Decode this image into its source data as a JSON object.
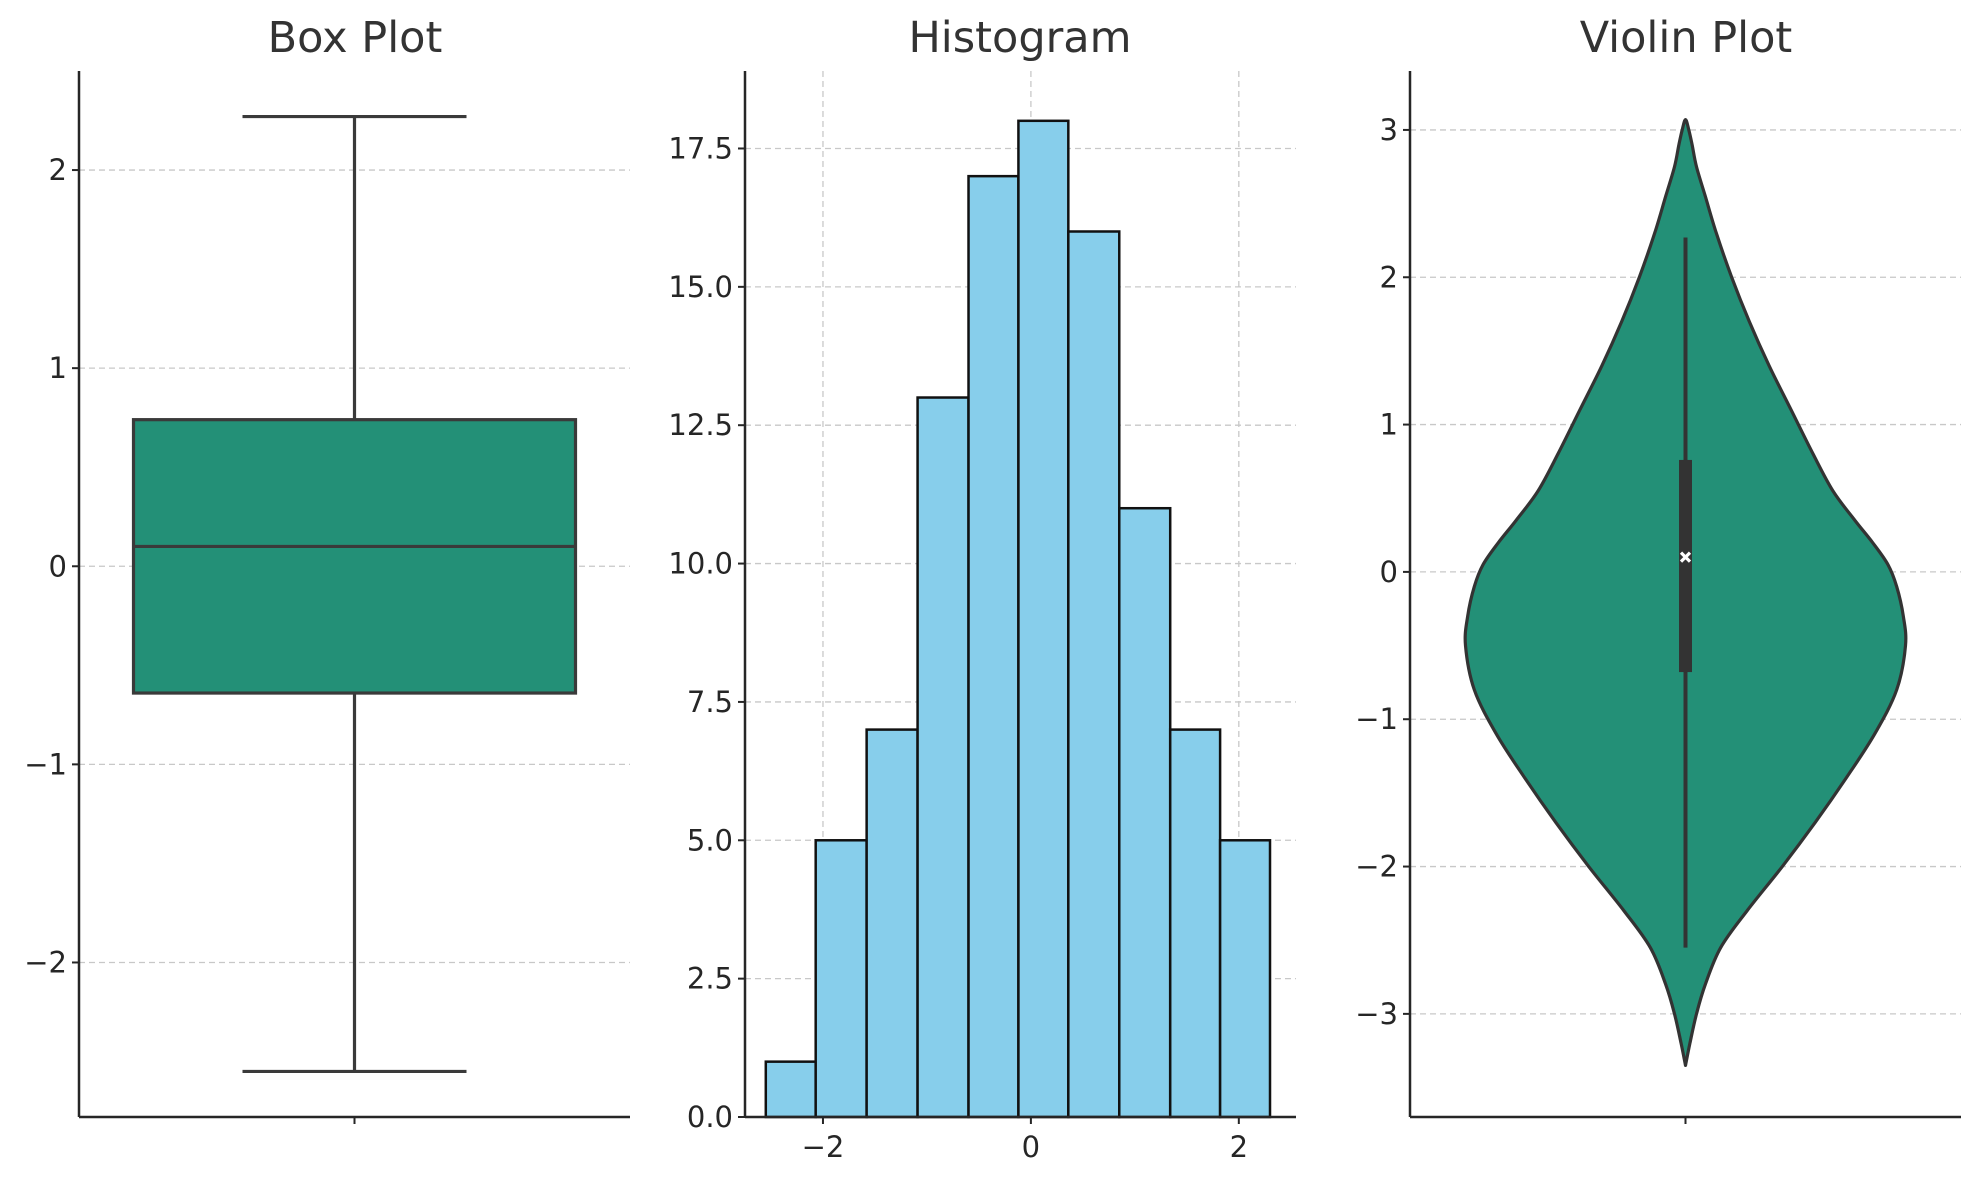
{
  "chart_data": [
    {
      "type": "box",
      "title": "Box Plot",
      "ylim": [
        -2.78,
        2.5
      ],
      "yticks": [
        -2,
        -1,
        0,
        1,
        2
      ],
      "yticklabels": [
        "−2",
        "−1",
        "0",
        "1",
        "2"
      ],
      "grid": "y",
      "stats": {
        "whisker_low": -2.55,
        "q1": -0.64,
        "median": 0.1,
        "q3": 0.74,
        "whisker_high": 2.27
      },
      "colors": {
        "fill": "#239077",
        "edge": "#3a3a3a"
      }
    },
    {
      "type": "bar",
      "title": "Histogram",
      "xlim": [
        -2.75,
        2.55
      ],
      "ylim": [
        0,
        18.9
      ],
      "xticks": [
        -2,
        0,
        2
      ],
      "xticklabels": [
        "−2",
        "0",
        "2"
      ],
      "yticks": [
        0,
        2.5,
        5,
        7.5,
        10,
        12.5,
        15,
        17.5
      ],
      "yticklabels": [
        "0.0",
        "2.5",
        "5.0",
        "7.5",
        "10.0",
        "12.5",
        "15.0",
        "17.5"
      ],
      "grid": "both",
      "bin_edges": [
        -2.55,
        -2.07,
        -1.58,
        -1.09,
        -0.6,
        -0.12,
        0.36,
        0.85,
        1.34,
        1.82,
        2.3
      ],
      "values": [
        1,
        5,
        7,
        13,
        17,
        18,
        16,
        11,
        7,
        5
      ],
      "colors": {
        "fill": "#87ceeb",
        "edge": "#111111"
      }
    },
    {
      "type": "violin",
      "title": "Violin Plot",
      "ylim": [
        -3.7,
        3.4
      ],
      "yticks": [
        -3,
        -2,
        -1,
        0,
        1,
        2,
        3
      ],
      "yticklabels": [
        "−3",
        "−2",
        "−1",
        "0",
        "1",
        "2",
        "3"
      ],
      "grid": "y",
      "density_profile": {
        "y": [
          -3.35,
          -3.2,
          -3.0,
          -2.8,
          -2.55,
          -2.3,
          -2.0,
          -1.7,
          -1.4,
          -1.1,
          -0.8,
          -0.5,
          -0.3,
          -0.1,
          0.05,
          0.2,
          0.35,
          0.55,
          0.8,
          1.1,
          1.4,
          1.7,
          2.0,
          2.3,
          2.55,
          2.75,
          2.9,
          3.0,
          3.07
        ],
        "half_width": [
          0.0,
          0.02,
          0.05,
          0.09,
          0.16,
          0.28,
          0.44,
          0.59,
          0.73,
          0.86,
          0.96,
          1.0,
          0.99,
          0.96,
          0.92,
          0.85,
          0.77,
          0.67,
          0.58,
          0.48,
          0.38,
          0.29,
          0.21,
          0.14,
          0.09,
          0.05,
          0.03,
          0.015,
          0.0
        ]
      },
      "inner_box": {
        "whisker_low": -2.55,
        "q1": -0.68,
        "median": 0.1,
        "q3": 0.76,
        "whisker_high": 2.27
      },
      "colors": {
        "fill": "#239077",
        "edge": "#333333",
        "inner": "#333333",
        "median_marker": "#ffffff"
      }
    }
  ]
}
